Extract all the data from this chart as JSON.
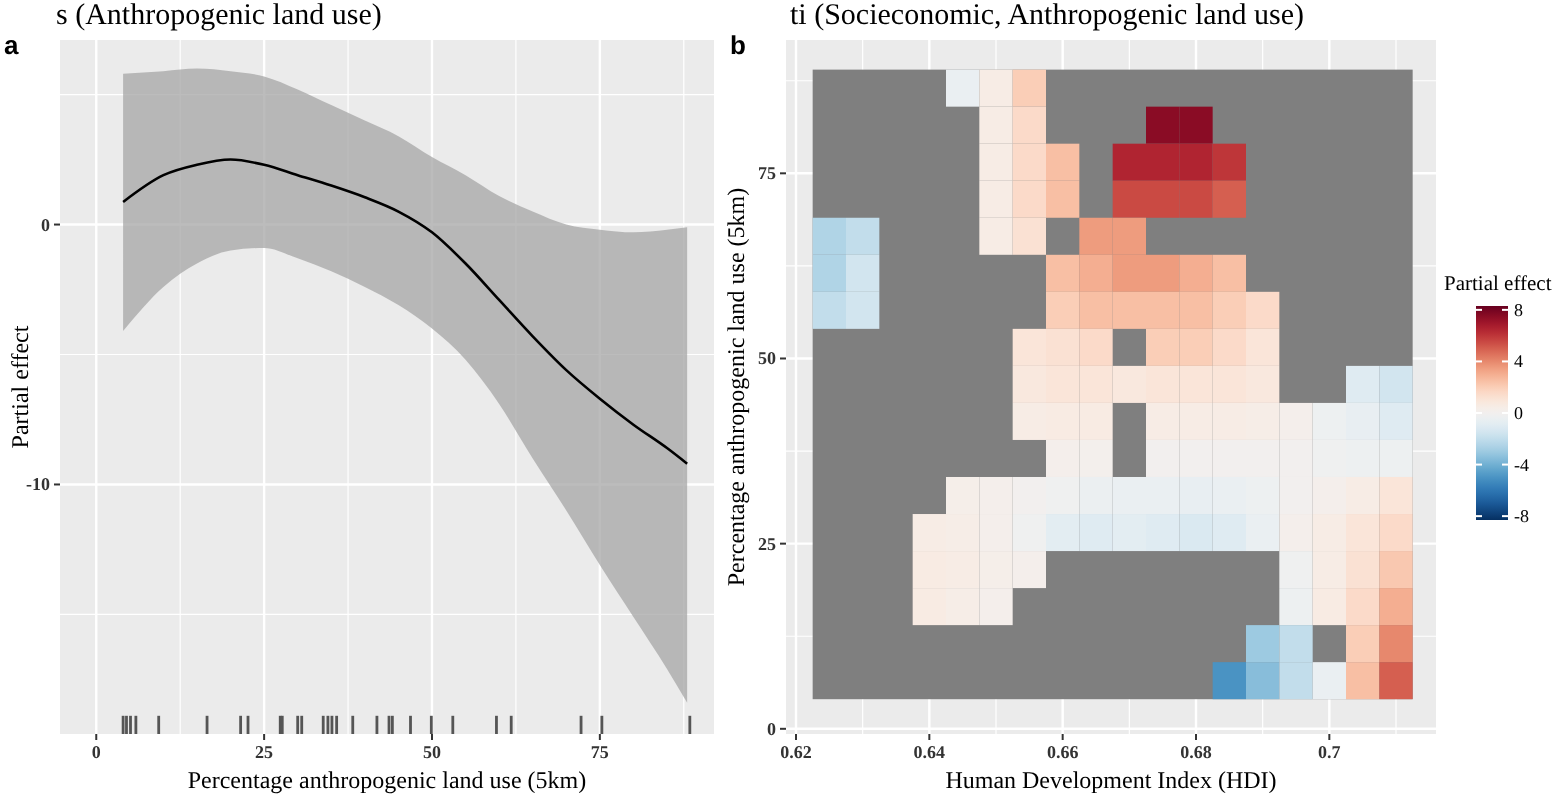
{
  "chart_data": [
    {
      "type": "line",
      "title": "s (Anthropogenic land use)",
      "xlabel": "Percentage anthropogenic land use (5km)",
      "ylabel": "Partial effect",
      "annotations": [
        "a"
      ],
      "xlim": [
        -5.4,
        92
      ],
      "ylim": [
        -19.6,
        7.1
      ],
      "xticks": [
        0,
        25,
        50,
        75
      ],
      "yticks": [
        0,
        -10
      ],
      "grid": true,
      "series": [
        {
          "type": "line",
          "color": "#000000",
          "x": [
            4,
            10,
            15,
            20,
            25,
            30,
            35,
            40,
            45,
            50,
            55,
            60,
            65,
            70,
            75,
            80,
            85,
            88
          ],
          "values": [
            0.87,
            1.9,
            2.3,
            2.5,
            2.3,
            1.9,
            1.5,
            1.05,
            0.5,
            -0.3,
            -1.5,
            -2.9,
            -4.3,
            -5.6,
            -6.7,
            -7.7,
            -8.6,
            -9.2
          ],
          "lower": [
            -4.1,
            -2.4,
            -1.5,
            -1.0,
            -0.9,
            -1.3,
            -1.8,
            -2.4,
            -3.1,
            -4.0,
            -5.2,
            -6.9,
            -9.0,
            -11.0,
            -13.1,
            -15.1,
            -17.1,
            -18.4
          ],
          "upper": [
            5.8,
            5.9,
            6.0,
            5.9,
            5.7,
            5.2,
            4.6,
            4.0,
            3.4,
            2.6,
            1.9,
            1.1,
            0.5,
            0,
            -0.2,
            -0.3,
            -0.2,
            -0.1
          ]
        },
        {
          "type": "bar",
          "color": "#555555",
          "x": [
            4.0,
            4.5,
            5.1,
            5.9,
            9.3,
            16.5,
            21.5,
            22.6,
            27.4,
            27.7,
            30.0,
            30.6,
            33.8,
            34.5,
            35.1,
            35.8,
            38.2,
            41.8,
            43.6,
            44.1,
            46.8,
            49.9,
            53.1,
            59.6,
            61.8,
            72.2,
            75.3,
            88.4
          ],
          "base": [
            -19.6,
            -19.6,
            -19.6,
            -19.6,
            -19.6,
            -19.6,
            -19.6,
            -19.6,
            -19.6,
            -19.6,
            -19.6,
            -19.6,
            -19.6,
            -19.6,
            -19.6,
            -19.6,
            -19.6,
            -19.6,
            -19.6,
            -19.6,
            -19.6,
            -19.6,
            -19.6,
            -19.6,
            -19.6,
            -19.6,
            -19.6,
            -19.6
          ],
          "values": [
            0.7,
            0.7,
            0.7,
            0.7,
            0.7,
            0.7,
            0.7,
            0.7,
            0.7,
            0.7,
            0.7,
            0.7,
            0.7,
            0.7,
            0.7,
            0.7,
            0.7,
            0.7,
            0.7,
            0.7,
            0.7,
            0.7,
            0.7,
            0.7,
            0.7,
            0.7,
            0.7,
            0.7
          ]
        }
      ]
    },
    {
      "type": "scatter",
      "marker": "square",
      "title": "ti (Socieconomic, Anthropogenic land use)",
      "xlabel": "Human Development Index (HDI)",
      "ylabel": "Percentage anthropogenic land use (5km)",
      "clabel": "Partial effect",
      "annotations": [
        "b"
      ],
      "xlim": [
        0.6185,
        0.716
      ],
      "ylim": [
        -0.7,
        93
      ],
      "xticks": [
        0.62,
        0.64,
        0.66,
        0.68,
        0.7
      ],
      "yticks": [
        0,
        25,
        50,
        75
      ],
      "grid": true,
      "clim": [
        -8.3,
        8.3
      ],
      "cticks": [
        8,
        4,
        0,
        -4,
        -8
      ],
      "x": [
        0.645,
        0.65,
        0.655,
        0.65,
        0.655,
        0.675,
        0.68,
        0.65,
        0.655,
        0.66,
        0.67,
        0.675,
        0.68,
        0.685,
        0.65,
        0.655,
        0.66,
        0.67,
        0.675,
        0.68,
        0.685,
        0.625,
        0.63,
        0.65,
        0.655,
        0.665,
        0.67,
        0.625,
        0.63,
        0.66,
        0.665,
        0.67,
        0.675,
        0.68,
        0.685,
        0.625,
        0.63,
        0.66,
        0.665,
        0.67,
        0.675,
        0.68,
        0.685,
        0.69,
        0.655,
        0.66,
        0.665,
        0.675,
        0.68,
        0.685,
        0.69,
        0.655,
        0.66,
        0.665,
        0.67,
        0.675,
        0.68,
        0.685,
        0.69,
        0.705,
        0.71,
        0.655,
        0.66,
        0.665,
        0.675,
        0.68,
        0.685,
        0.69,
        0.695,
        0.7,
        0.705,
        0.71,
        0.66,
        0.665,
        0.675,
        0.68,
        0.685,
        0.69,
        0.695,
        0.7,
        0.705,
        0.71,
        0.645,
        0.65,
        0.655,
        0.66,
        0.665,
        0.67,
        0.675,
        0.68,
        0.685,
        0.69,
        0.695,
        0.7,
        0.705,
        0.71,
        0.64,
        0.645,
        0.65,
        0.655,
        0.66,
        0.665,
        0.67,
        0.675,
        0.68,
        0.685,
        0.69,
        0.695,
        0.7,
        0.705,
        0.71,
        0.64,
        0.645,
        0.65,
        0.655,
        0.695,
        0.7,
        0.705,
        0.71,
        0.64,
        0.645,
        0.65,
        0.695,
        0.7,
        0.705,
        0.71,
        0.69,
        0.695,
        0.705,
        0.71,
        0.685,
        0.69,
        0.695,
        0.7,
        0.705,
        0.71
      ],
      "values": [
        86.5,
        86.5,
        86.5,
        81.5,
        81.5,
        81.5,
        81.5,
        76.5,
        76.5,
        76.5,
        76.5,
        76.5,
        76.5,
        76.5,
        71.5,
        71.5,
        71.5,
        71.5,
        71.5,
        71.5,
        71.5,
        66.5,
        66.5,
        66.5,
        66.5,
        66.5,
        66.5,
        61.5,
        61.5,
        61.5,
        61.5,
        61.5,
        61.5,
        61.5,
        61.5,
        56.5,
        56.5,
        56.5,
        56.5,
        56.5,
        56.5,
        56.5,
        56.5,
        56.5,
        51.5,
        51.5,
        51.5,
        51.5,
        51.5,
        51.5,
        51.5,
        46.5,
        46.5,
        46.5,
        46.5,
        46.5,
        46.5,
        46.5,
        46.5,
        46.5,
        46.5,
        41.5,
        41.5,
        41.5,
        41.5,
        41.5,
        41.5,
        41.5,
        41.5,
        41.5,
        41.5,
        41.5,
        36.5,
        36.5,
        36.5,
        36.5,
        36.5,
        36.5,
        36.5,
        36.5,
        36.5,
        36.5,
        31.5,
        31.5,
        31.5,
        31.5,
        31.5,
        31.5,
        31.5,
        31.5,
        31.5,
        31.5,
        31.5,
        31.5,
        31.5,
        31.5,
        26.5,
        26.5,
        26.5,
        26.5,
        26.5,
        26.5,
        26.5,
        26.5,
        26.5,
        26.5,
        26.5,
        26.5,
        26.5,
        26.5,
        26.5,
        21.5,
        21.5,
        21.5,
        21.5,
        21.5,
        21.5,
        21.5,
        21.5,
        16.5,
        16.5,
        16.5,
        16.5,
        16.5,
        16.5,
        16.5,
        11.5,
        11.5,
        11.5,
        11.5,
        6.5,
        6.5,
        6.5,
        6.5,
        6.5,
        6.5
      ],
      "cvalues": [
        -0.5,
        0.5,
        2,
        0.5,
        1.5,
        7.5,
        7.5,
        0.5,
        1.5,
        2.5,
        6.5,
        6.5,
        6.5,
        6,
        0.5,
        1.5,
        2.5,
        5.5,
        5.5,
        5.5,
        5,
        -2.5,
        -2,
        0.5,
        1.2,
        3.5,
        3.5,
        -2.5,
        -1.5,
        2.5,
        3,
        3.5,
        3.5,
        3,
        2.5,
        -2,
        -1.5,
        2,
        2.5,
        2.5,
        2.5,
        2.5,
        2,
        1.5,
        1,
        1.2,
        1.5,
        2,
        2,
        1.5,
        1,
        0.8,
        1,
        1,
        0.8,
        1,
        1,
        1,
        0.8,
        -1,
        -1.5,
        0.5,
        0.6,
        0.6,
        0.5,
        0.5,
        0.5,
        0.4,
        0.2,
        -0.3,
        -0.6,
        -1,
        0.2,
        0.1,
        0,
        0,
        0,
        0,
        0,
        -0.2,
        -0.3,
        -0.3,
        0.3,
        0.2,
        0,
        -0.2,
        -0.4,
        -0.5,
        -0.5,
        -0.6,
        -0.5,
        -0.3,
        0,
        0.2,
        0.5,
        1,
        0.5,
        0.4,
        0.2,
        -0.2,
        -0.8,
        -1,
        -0.8,
        -1,
        -1.2,
        -1,
        -0.5,
        0.2,
        0.5,
        1,
        1.5,
        0.6,
        0.5,
        0.3,
        0.2,
        -0.2,
        0.5,
        1.2,
        2.2,
        0.6,
        0.4,
        0.2,
        -0.3,
        0.6,
        1.5,
        3,
        -3,
        -2,
        2,
        4,
        -5,
        -3.5,
        -2,
        -0.5,
        2.5,
        5
      ]
    }
  ]
}
